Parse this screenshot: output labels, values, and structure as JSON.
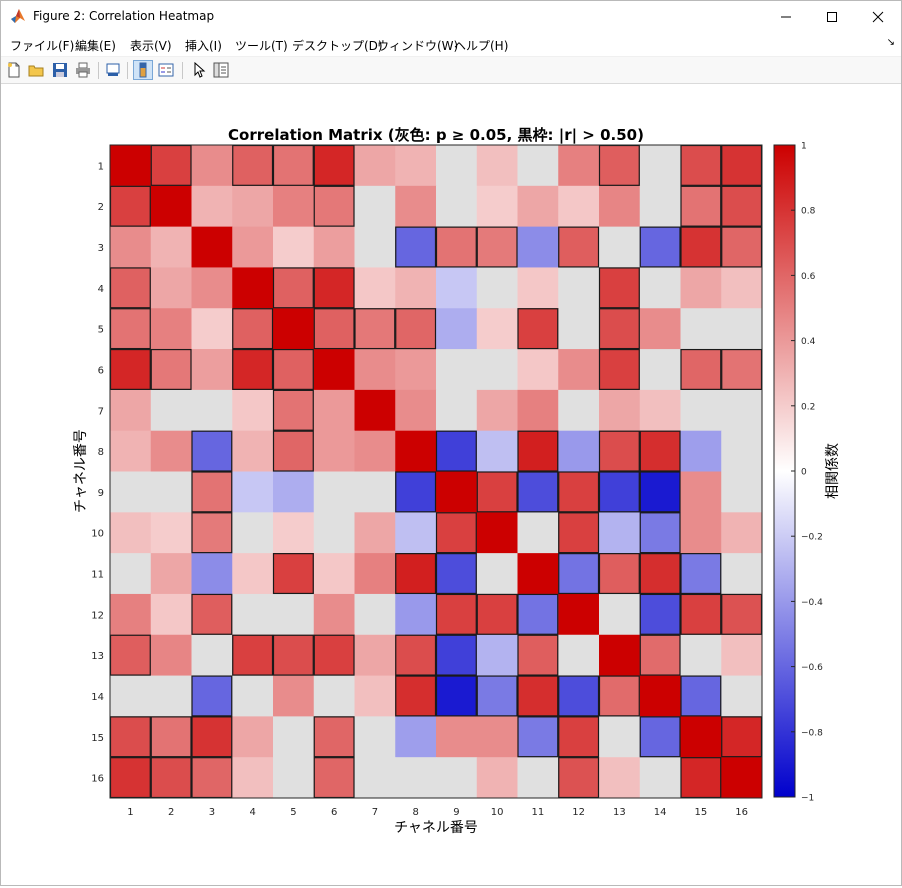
{
  "window": {
    "title": "Figure 2: Correlation Heatmap",
    "icon": "matlab-logo-icon",
    "controls": [
      "minimize-icon",
      "maximize-icon",
      "close-icon"
    ]
  },
  "menu": [
    {
      "label": "ファイル(F)"
    },
    {
      "label": "編集(E)"
    },
    {
      "label": "表示(V)"
    },
    {
      "label": "挿入(I)"
    },
    {
      "label": "ツール(T)"
    },
    {
      "label": "デスクトップ(D)"
    },
    {
      "label": "ウィンドウ(W)"
    },
    {
      "label": "ヘルプ(H)"
    }
  ],
  "menu_overflow": "↘",
  "toolbar": [
    "new-figure-icon",
    "open-icon",
    "save-icon",
    "print-icon",
    "print-preview-icon",
    "colorbar-toggle-icon",
    "legend-toggle-icon",
    "select-pointer-icon",
    "property-inspector-icon"
  ],
  "chart_data": {
    "type": "heatmap",
    "title": "Correlation Matrix (灰色: p ≥ 0.05, 黒枠: |r| > 0.50)",
    "xlabel": "チャネル番号",
    "ylabel": "チャネル番号",
    "colorbar_label": "相関係数",
    "x_categories": [
      "1",
      "2",
      "3",
      "4",
      "5",
      "6",
      "7",
      "8",
      "9",
      "10",
      "11",
      "12",
      "13",
      "14",
      "15",
      "16"
    ],
    "y_categories": [
      "1",
      "2",
      "3",
      "4",
      "5",
      "6",
      "7",
      "8",
      "9",
      "10",
      "11",
      "12",
      "13",
      "14",
      "15",
      "16"
    ],
    "clim": [
      -1,
      1
    ],
    "colorbar_ticks": [
      "1",
      "0.8",
      "0.6",
      "0.4",
      "0.2",
      "0",
      "−0.2",
      "−0.4",
      "−0.6",
      "−0.8",
      "−1"
    ],
    "colormap": {
      "negative": "#0000cc",
      "zero": "#ffffff",
      "positive": "#cc0000"
    },
    "not_significant_color": "#e0e0e0",
    "outline_threshold": 0.5,
    "values": [
      [
        1.0,
        0.75,
        0.45,
        0.62,
        0.55,
        0.85,
        0.35,
        0.3,
        null,
        0.25,
        null,
        0.5,
        0.63,
        null,
        0.7,
        0.8
      ],
      [
        0.75,
        1.0,
        0.3,
        0.35,
        0.5,
        0.53,
        null,
        0.45,
        null,
        0.2,
        0.35,
        0.22,
        0.48,
        null,
        0.55,
        0.7
      ],
      [
        0.45,
        0.3,
        1.0,
        0.4,
        0.2,
        0.38,
        null,
        -0.6,
        0.55,
        0.52,
        -0.45,
        0.63,
        null,
        -0.6,
        0.8,
        0.6
      ],
      [
        0.62,
        0.35,
        0.45,
        1.0,
        0.62,
        0.85,
        0.22,
        0.3,
        -0.22,
        null,
        0.22,
        null,
        0.75,
        null,
        0.35,
        0.25
      ],
      [
        0.55,
        0.5,
        0.2,
        0.62,
        1.0,
        0.62,
        0.53,
        0.6,
        -0.32,
        0.2,
        0.75,
        null,
        0.7,
        0.45,
        null,
        null
      ],
      [
        0.85,
        0.53,
        0.38,
        0.85,
        0.62,
        1.0,
        0.45,
        0.4,
        null,
        null,
        0.22,
        0.45,
        0.75,
        null,
        0.6,
        0.55
      ],
      [
        0.35,
        null,
        null,
        0.22,
        0.55,
        0.4,
        1.0,
        0.45,
        null,
        0.35,
        0.5,
        null,
        0.35,
        0.25,
        null,
        null
      ],
      [
        0.3,
        0.45,
        -0.6,
        0.3,
        0.6,
        0.4,
        0.45,
        1.0,
        -0.75,
        -0.25,
        0.88,
        -0.4,
        0.7,
        0.82,
        -0.38,
        null
      ],
      [
        null,
        null,
        0.55,
        -0.22,
        -0.32,
        null,
        null,
        -0.75,
        1.0,
        0.75,
        -0.7,
        0.75,
        -0.75,
        -0.9,
        0.45,
        null
      ],
      [
        0.25,
        0.2,
        0.52,
        null,
        0.2,
        null,
        0.35,
        -0.25,
        0.75,
        1.0,
        null,
        0.75,
        -0.3,
        -0.52,
        0.45,
        0.3
      ],
      [
        null,
        0.35,
        -0.45,
        0.22,
        0.75,
        0.22,
        0.5,
        0.88,
        -0.7,
        null,
        1.0,
        -0.55,
        0.63,
        0.82,
        -0.52,
        null
      ],
      [
        0.5,
        0.22,
        0.63,
        null,
        null,
        0.45,
        null,
        -0.4,
        0.75,
        0.75,
        -0.55,
        1.0,
        null,
        -0.7,
        0.75,
        0.68
      ],
      [
        0.63,
        0.48,
        null,
        0.75,
        0.7,
        0.75,
        0.35,
        0.7,
        -0.75,
        -0.3,
        0.63,
        null,
        1.0,
        0.58,
        null,
        0.25
      ],
      [
        null,
        null,
        -0.6,
        null,
        0.45,
        null,
        0.25,
        0.82,
        -0.9,
        -0.52,
        0.82,
        -0.7,
        0.58,
        1.0,
        -0.6,
        null
      ],
      [
        0.7,
        0.55,
        0.8,
        0.35,
        null,
        0.6,
        null,
        -0.38,
        0.45,
        0.45,
        -0.52,
        0.75,
        null,
        -0.6,
        1.0,
        0.85
      ],
      [
        0.8,
        0.7,
        0.6,
        0.25,
        null,
        0.6,
        null,
        null,
        null,
        0.3,
        null,
        0.68,
        0.25,
        null,
        0.85,
        1.0
      ]
    ]
  }
}
